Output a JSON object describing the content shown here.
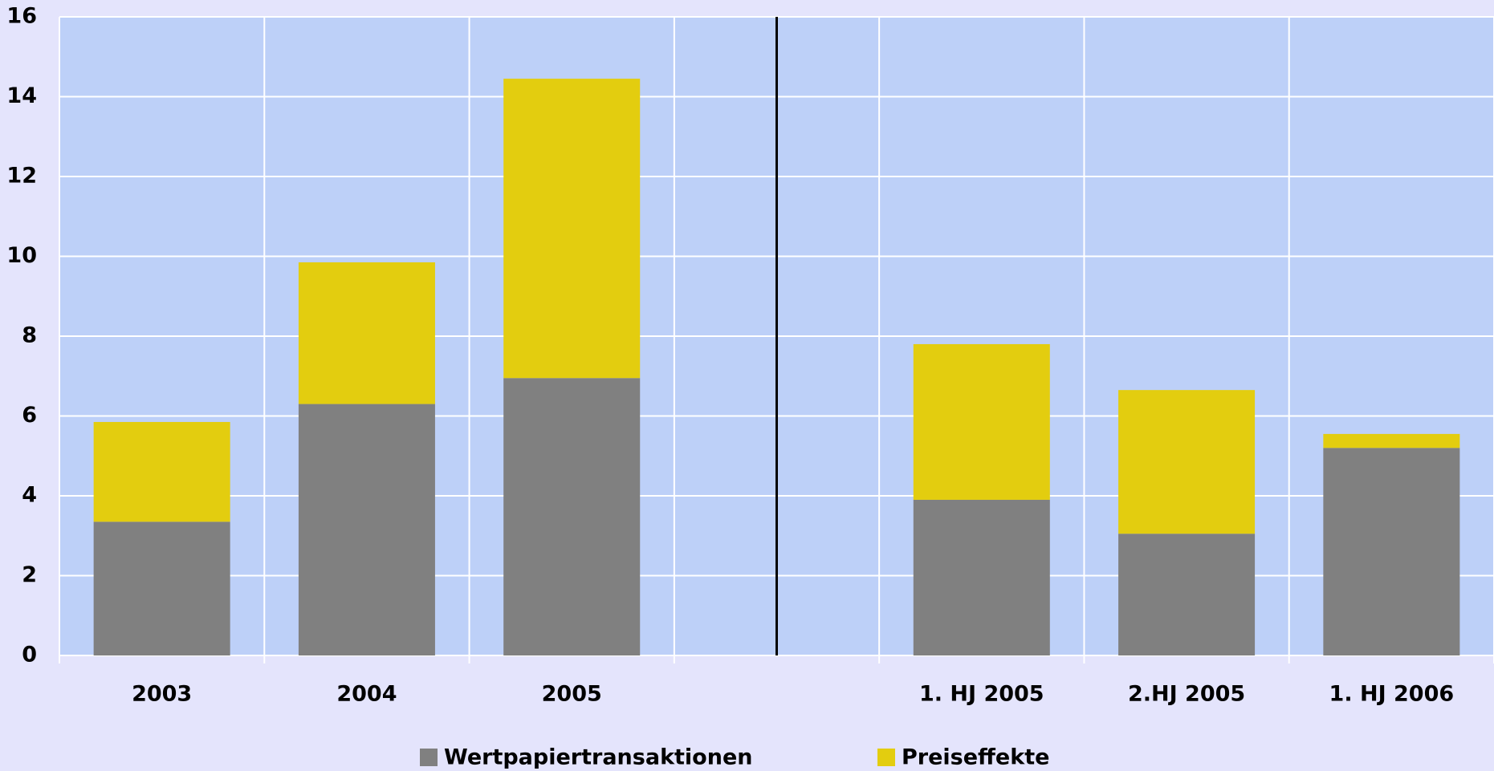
{
  "chart_data": {
    "type": "stacked_bar",
    "categories": [
      "2003",
      "2004",
      "2005",
      null,
      "1. HJ 2005",
      "2.HJ 2005",
      "1. HJ 2006"
    ],
    "series": [
      {
        "name": "Wertpapiertransaktionen",
        "color": "#808080",
        "values": [
          3.35,
          6.3,
          6.95,
          null,
          3.9,
          3.05,
          5.2
        ]
      },
      {
        "name": "Preiseffekte",
        "color": "#e3cd0f",
        "values": [
          2.5,
          3.55,
          7.5,
          null,
          3.9,
          3.6,
          0.35
        ]
      }
    ],
    "ylim": [
      0,
      16
    ],
    "yticks": [
      0,
      2,
      4,
      6,
      8,
      10,
      12,
      14,
      16
    ],
    "grid": true,
    "legend": "bottom"
  }
}
